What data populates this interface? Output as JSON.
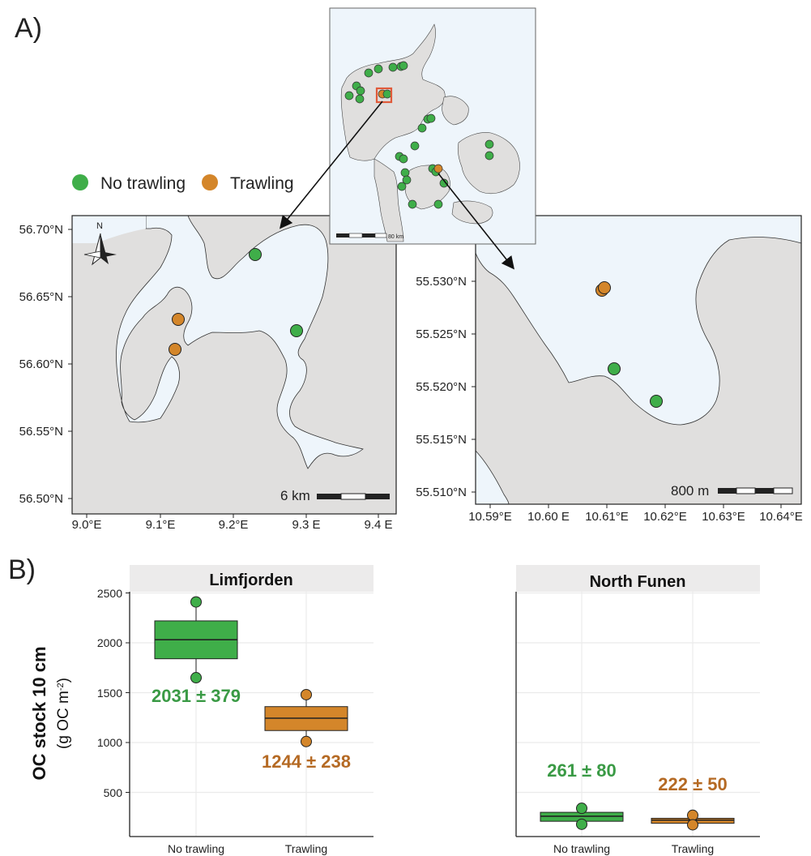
{
  "panel_labels": {
    "a": "A)",
    "b": "B)"
  },
  "legend": {
    "items": [
      {
        "label": "No trawling",
        "color": "#3fae49"
      },
      {
        "label": "Trawling",
        "color": "#d4862a"
      }
    ]
  },
  "colors": {
    "land": "#e0dfde",
    "water": "#eef5fb",
    "no_trawling": "#3fae49",
    "trawling": "#d4862a",
    "inset_box": "#e05a3a",
    "strip": "#ecebeb",
    "no_trawling_text": "#3a9a45",
    "trawling_text": "#b56a24"
  },
  "inset": {
    "scale_label": "80 km"
  },
  "map_left": {
    "north_label": "N",
    "scale_label": "6 km",
    "y_ticks": [
      "56.70°N",
      "56.65°N",
      "56.60°N",
      "56.55°N",
      "56.50°N"
    ],
    "x_ticks": [
      "9.0°E",
      "9.1°E",
      "9.2°E",
      "9.3 E",
      "9.4 E"
    ]
  },
  "map_right": {
    "scale_label": "800 m",
    "y_ticks": [
      "55.530°N",
      "55.525°N",
      "55.520°N",
      "55.515°N",
      "55.510°N"
    ],
    "x_ticks": [
      "10.59°E",
      "10.60 E",
      "10.61°E",
      "10.62°E",
      "10.63°E",
      "10.64°E"
    ]
  },
  "chart_data": {
    "type": "box",
    "ylabel_main": "OC stock 10 cm",
    "ylabel_unit_pre": "(g OC m",
    "ylabel_unit_sup": "-2",
    "ylabel_unit_post": ")",
    "ylim": [
      0,
      2500
    ],
    "y_ticks": [
      "2500",
      "2000",
      "1500",
      "1000",
      "500"
    ],
    "categories": [
      "No trawling",
      "Trawling"
    ],
    "facets": [
      {
        "name": "Limfjorden",
        "boxes": [
          {
            "group": "No trawling",
            "q1": 1840,
            "median": 2031,
            "q3": 2220,
            "points": [
              2410,
              1650
            ],
            "label": "2031 ± 379"
          },
          {
            "group": "Trawling",
            "q1": 1120,
            "median": 1244,
            "q3": 1360,
            "points": [
              1480,
              1010
            ],
            "label": "1244 ± 238"
          }
        ]
      },
      {
        "name": "North Funen",
        "boxes": [
          {
            "group": "No trawling",
            "q1": 210,
            "median": 261,
            "q3": 300,
            "points": [
              340,
              180
            ],
            "label": "261 ± 80"
          },
          {
            "group": "Trawling",
            "q1": 190,
            "median": 222,
            "q3": 240,
            "points": [
              270,
              175
            ],
            "label": "222 ± 50"
          }
        ]
      }
    ]
  }
}
